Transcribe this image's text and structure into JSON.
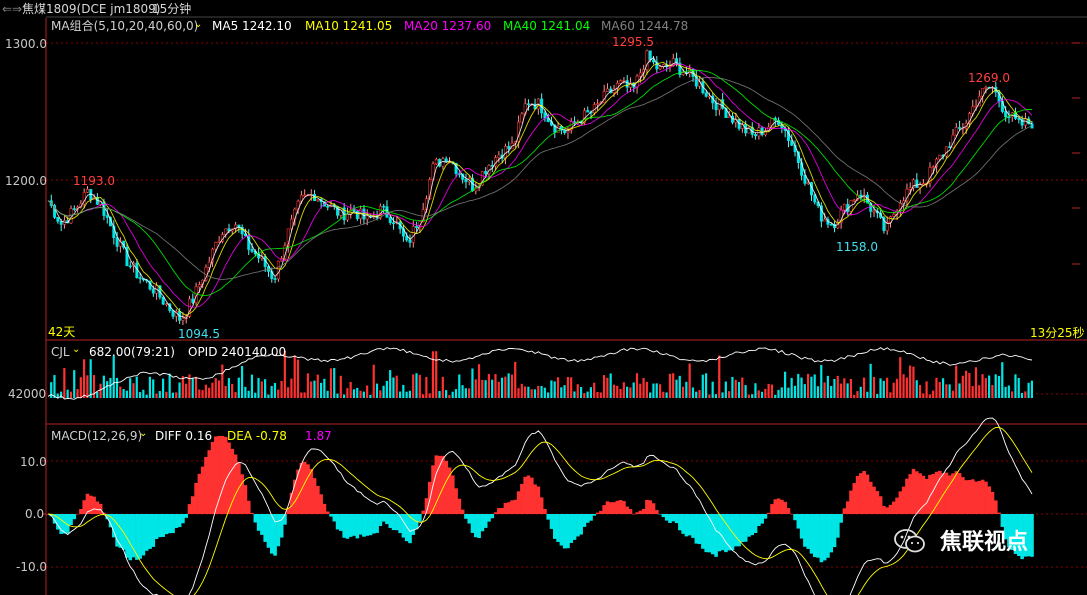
{
  "header": {
    "symbol": "焦煤1809(DCE jm1809)",
    "period": "15分钟",
    "ma_group": "MA组合(5,10,20,40,60,0)",
    "ma": [
      {
        "label": "MA5 1242.10",
        "color": "#ffffff"
      },
      {
        "label": "MA10 1241.05",
        "color": "#ffff00"
      },
      {
        "label": "MA20 1237.60",
        "color": "#ff00ff"
      },
      {
        "label": "MA40 1241.04",
        "color": "#00ff00"
      },
      {
        "label": "MA60 1244.78",
        "color": "#808080"
      }
    ]
  },
  "price_panel": {
    "y_ticks": [
      "1300.0",
      "1200.0"
    ],
    "annotations": {
      "high1": "1193.0",
      "low1": "1094.5",
      "high2": "1295.5",
      "low2": "1158.0",
      "high3": "1269.0"
    },
    "days_label": "42天",
    "countdown": "13分25秒"
  },
  "volume_panel": {
    "indicator": "CJL",
    "value": "682.00(79:21)",
    "opid": "OPID 240140.00",
    "y_tick": "42000"
  },
  "macd_panel": {
    "indicator": "MACD(12,26,9)",
    "diff": "DIFF 0.16",
    "dea": "DEA -0.78",
    "macd": "1.87",
    "y_ticks": [
      "10.0",
      "0.0",
      "-10.0"
    ]
  },
  "watermark": {
    "text": "焦联视点"
  },
  "colors": {
    "up": "#ff3232",
    "down": "#00e5e5",
    "grid": "#8b0000",
    "axis": "#b22222"
  },
  "chart_data": {
    "type": "line",
    "title": "",
    "ylim": [
      1070,
      1310
    ],
    "x": [
      0,
      20,
      40,
      60,
      80,
      100,
      120,
      140,
      160,
      180,
      200,
      220,
      240,
      260,
      280,
      300,
      320,
      340,
      360,
      380,
      400,
      420,
      440,
      460,
      480,
      500,
      520,
      540,
      560,
      580,
      600,
      620,
      640,
      660,
      680,
      700,
      720,
      740,
      760,
      780,
      800,
      820,
      840,
      860,
      880,
      900,
      920,
      940,
      960,
      980,
      1000,
      1020,
      1040,
      1060,
      1080,
      1100,
      1120,
      1140,
      1160,
      1180,
      1200,
      1220,
      1240,
      1260,
      1280,
      1300,
      1320,
      1340,
      1360,
      1380,
      1400,
      1420,
      1440,
      1460,
      1480
    ],
    "series": [
      {
        "name": "close",
        "values": [
          1185,
          1168,
          1178,
          1192,
          1182,
          1160,
          1140,
          1128,
          1120,
          1108,
          1098,
          1115,
          1138,
          1162,
          1170,
          1152,
          1142,
          1128,
          1160,
          1185,
          1190,
          1182,
          1175,
          1178,
          1170,
          1178,
          1172,
          1152,
          1175,
          1210,
          1218,
          1205,
          1195,
          1210,
          1220,
          1225,
          1258,
          1255,
          1240,
          1235,
          1245,
          1250,
          1262,
          1270,
          1265,
          1290,
          1280,
          1285,
          1278,
          1270,
          1258,
          1250,
          1240,
          1232,
          1238,
          1245,
          1225,
          1200,
          1175,
          1168,
          1180,
          1192,
          1178,
          1162,
          1185,
          1195,
          1200,
          1215,
          1230,
          1242,
          1262,
          1268,
          1250,
          1240,
          1242
        ]
      }
    ]
  }
}
